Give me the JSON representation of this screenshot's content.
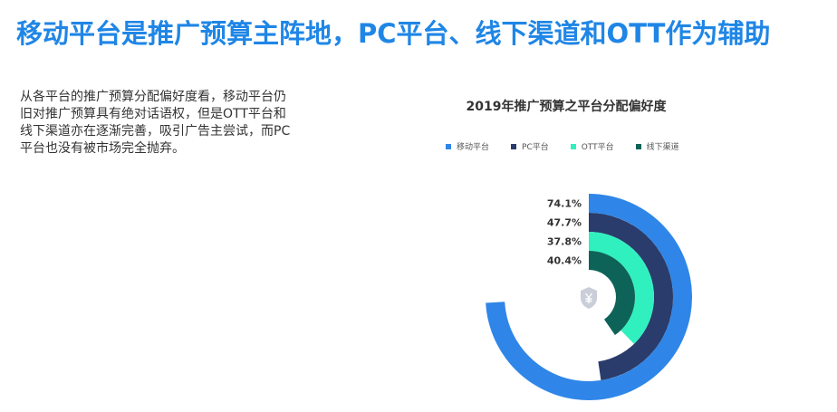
{
  "page": {
    "title": "移动平台是推广预算主阵地，PC平台、线下渠道和OTT作为辅助",
    "description": "从各平台的推广预算分配偏好度看，移动平台仍旧对推广预算具有绝对话语权，但是OTT平台和线下渠道亦在逐渐完善，吸引广告主尝试，而PC平台也没有被市场完全抛弃。"
  },
  "chart_data": {
    "type": "radial-bar",
    "title": "2019年推广预算之平台分配偏好度",
    "max": 100,
    "series": [
      {
        "name": "移动平台",
        "value": 74.1,
        "label": "74.1%",
        "color": "#2f86e8"
      },
      {
        "name": "PC平台",
        "value": 47.7,
        "label": "47.7%",
        "color": "#293c6b"
      },
      {
        "name": "OTT平台",
        "value": 37.8,
        "label": "37.8%",
        "color": "#31f0bf"
      },
      {
        "name": "线下渠道",
        "value": 40.4,
        "label": "40.4%",
        "color": "#0d6358"
      }
    ],
    "legend_position": "top",
    "center_icon": "shield-yen-icon"
  }
}
